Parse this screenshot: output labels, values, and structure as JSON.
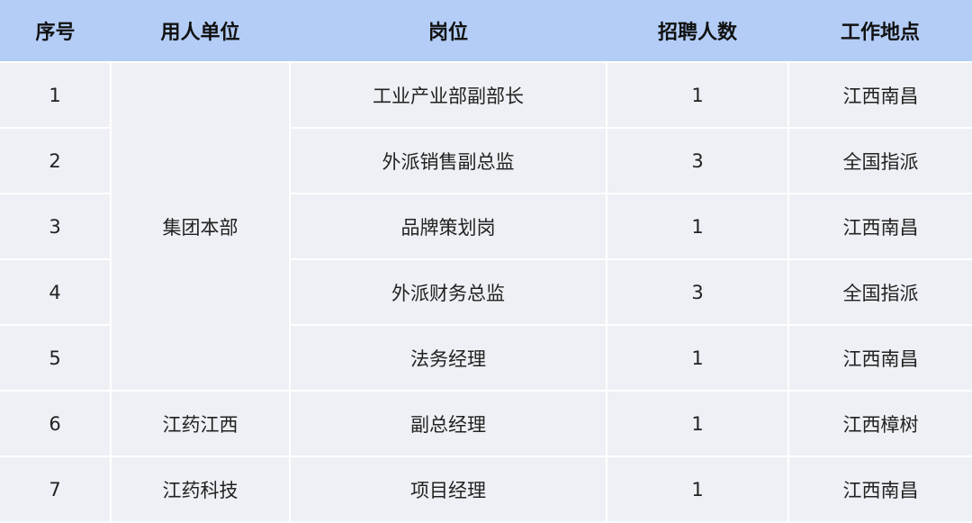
{
  "headers": [
    "序号",
    "用人单位",
    "岗位",
    "招聘人数",
    "工作地点"
  ],
  "rows": [
    {
      "no": "1",
      "unit": "集团本部",
      "position": "工业产业部副部长",
      "count": "1",
      "location": "江西南昌"
    },
    {
      "no": "2",
      "position": "外派销售副总监",
      "count": "3",
      "location": "全国指派"
    },
    {
      "no": "3",
      "position": "品牌策划岗",
      "count": "1",
      "location": "江西南昌"
    },
    {
      "no": "4",
      "position": "外派财务总监",
      "count": "3",
      "location": "全国指派"
    },
    {
      "no": "5",
      "position": "法务经理",
      "count": "1",
      "location": "江西南昌"
    },
    {
      "no": "6",
      "unit": "江药江西",
      "position": "副总经理",
      "count": "1",
      "location": "江西樟树"
    },
    {
      "no": "7",
      "unit": "江药科技",
      "position": "项目经理",
      "count": "1",
      "location": "江西南昌"
    }
  ],
  "colors": {
    "header_bg": "#b3cdf6",
    "cell_bg": "#eef0f5"
  }
}
